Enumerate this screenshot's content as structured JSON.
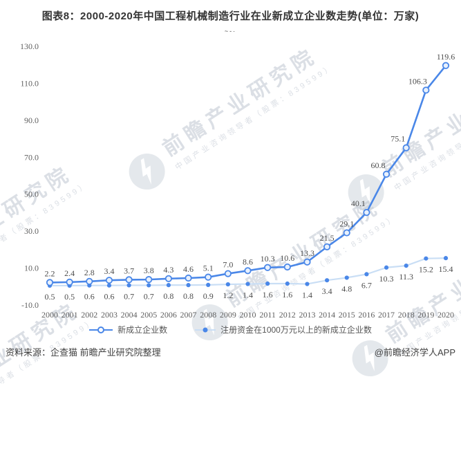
{
  "title": "图表8：2000-2020年中国工程机械制造行业在业新成立企业数走势(单位：万家)",
  "subtitle_mark": "~-·",
  "watermark": {
    "main": "前瞻产业研究院",
    "sub": "中国产业咨询领导者（股票：839599）"
  },
  "legend": {
    "items": [
      "新成立企业数",
      "注册资金在1000万元以上的新成立企业数"
    ]
  },
  "footer": {
    "source": "资料来源：企查猫 前瞻产业研究院整理",
    "credit": "@前瞻经济学人APP"
  },
  "colors": {
    "series1_line": "#4a87e8",
    "series1_marker_fill": "#e8f1fd",
    "series2_line": "#c9def5",
    "series2_dot": "#4a87e8",
    "data_label": "#4d4d4d",
    "tick_label": "#606060"
  },
  "chart_data": {
    "type": "line",
    "title": "图表8：2000-2020年中国工程机械制造行业在业新成立企业数走势(单位：万家)",
    "categories": [
      "2000",
      "2001",
      "2002",
      "2003",
      "2004",
      "2005",
      "2006",
      "2007",
      "2008",
      "2009",
      "2010",
      "2011",
      "2012",
      "2013",
      "2014",
      "2015",
      "2016",
      "2017",
      "2018",
      "2019",
      "2020"
    ],
    "series": [
      {
        "name": "新成立企业数",
        "values": [
          2.2,
          2.4,
          2.8,
          3.4,
          3.7,
          3.8,
          4.3,
          4.6,
          5.1,
          7.0,
          8.6,
          10.3,
          10.6,
          13.3,
          21.5,
          29.1,
          40.1,
          60.8,
          75.1,
          106.3,
          119.6
        ],
        "color": "#4a87e8",
        "marker": "open-circle",
        "label_position": "top"
      },
      {
        "name": "注册资金在1000万元以上的新成立企业数",
        "values": [
          0.5,
          0.5,
          0.6,
          0.6,
          0.7,
          0.7,
          0.8,
          0.8,
          0.9,
          1.2,
          1.4,
          1.6,
          1.6,
          1.4,
          3.4,
          4.8,
          6.7,
          10.3,
          11.3,
          15.2,
          15.4
        ],
        "color": "#c9def5",
        "marker": "dot",
        "marker_color": "#4a87e8",
        "label_position": "bottom"
      }
    ],
    "yticks": [
      "130.0",
      "110.0",
      "90.0",
      "70.0",
      "50.0",
      "30.0",
      "10.0",
      "-10.0"
    ],
    "ylim": [
      -10,
      130
    ],
    "xlabel": "",
    "ylabel": "",
    "grid": false,
    "legend_position": "bottom"
  }
}
